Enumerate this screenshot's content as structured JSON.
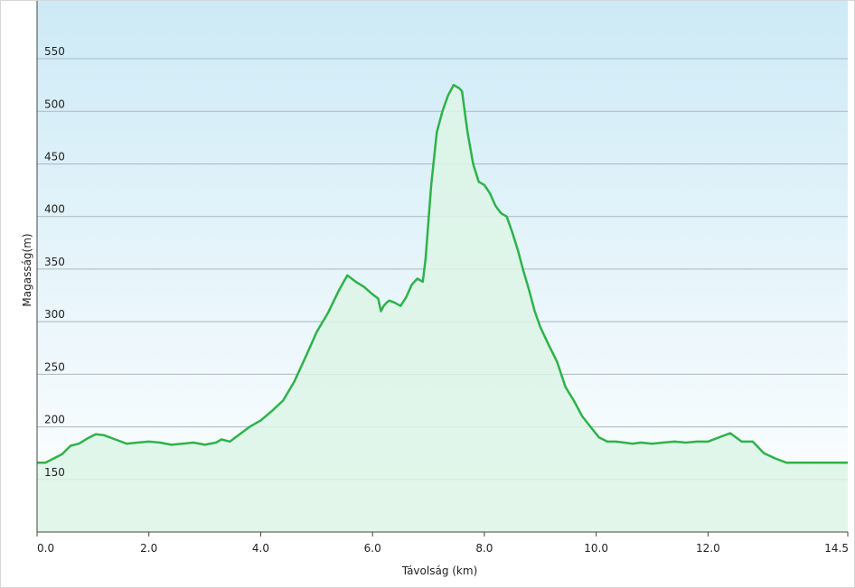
{
  "chart_data": {
    "type": "area",
    "title": "",
    "xlabel": "Távolság  (km)",
    "ylabel": "Magasság(m)",
    "xlim": [
      0,
      14.5
    ],
    "ylim": [
      100,
      605
    ],
    "x_ticks": [
      0,
      2,
      4,
      6,
      8,
      10,
      12,
      14.5
    ],
    "x_tick_labels": [
      "0.0",
      "2.0",
      "4.0",
      "6.0",
      "8.0",
      "10.0",
      "12.0",
      "14.5"
    ],
    "y_ticks": [
      150,
      200,
      250,
      300,
      350,
      400,
      450,
      500,
      550
    ],
    "y_tick_labels": [
      "150",
      "200",
      "250",
      "300",
      "350",
      "400",
      "450",
      "500",
      "550"
    ],
    "grid": "horizontal",
    "colors": {
      "line": "#2db34a",
      "area_fill": "#ddf5e6",
      "background_top": "#cdeaf6",
      "background_bottom": "#ffffff",
      "grid": "#aab8bf"
    },
    "series": [
      {
        "x": [
          0,
          0.15,
          0.3,
          0.45,
          0.6,
          0.75,
          0.9,
          1.05,
          1.2,
          1.4,
          1.6,
          1.8,
          2.0,
          2.2,
          2.4,
          2.6,
          2.8,
          3.0,
          3.2,
          3.3,
          3.45,
          3.6,
          3.8,
          4.0,
          4.2,
          4.4,
          4.6,
          4.8,
          5.0,
          5.2,
          5.4,
          5.55,
          5.7,
          5.85,
          6.0,
          6.1,
          6.15,
          6.2,
          6.25,
          6.3,
          6.4,
          6.5,
          6.6,
          6.7,
          6.8,
          6.9,
          6.95,
          7.05,
          7.15,
          7.25,
          7.35,
          7.45,
          7.55,
          7.6,
          7.7,
          7.8,
          7.9,
          8.0,
          8.1,
          8.2,
          8.3,
          8.4,
          8.5,
          8.6,
          8.7,
          8.8,
          8.9,
          9.0,
          9.15,
          9.3,
          9.45,
          9.6,
          9.75,
          9.9,
          10.05,
          10.2,
          10.35,
          10.5,
          10.65,
          10.8,
          11.0,
          11.2,
          11.4,
          11.6,
          11.8,
          12.0,
          12.2,
          12.4,
          12.6,
          12.8,
          13.0,
          13.2,
          13.4,
          13.6,
          13.8,
          14.0,
          14.2,
          14.35,
          14.5
        ],
        "y": [
          166,
          166,
          170,
          174,
          182,
          184,
          189,
          193,
          192,
          188,
          184,
          185,
          186,
          185,
          183,
          184,
          185,
          183,
          185,
          188,
          186,
          192,
          200,
          206,
          215,
          225,
          243,
          266,
          290,
          308,
          330,
          344,
          338,
          333,
          326,
          322,
          310,
          315,
          318,
          320,
          318,
          315,
          323,
          335,
          341,
          338,
          360,
          430,
          480,
          500,
          515,
          525,
          522,
          519,
          480,
          450,
          433,
          430,
          422,
          410,
          403,
          400,
          385,
          368,
          348,
          330,
          310,
          295,
          278,
          262,
          238,
          225,
          210,
          200,
          190,
          186,
          186,
          185,
          184,
          185,
          184,
          185,
          186,
          185,
          186,
          186,
          190,
          194,
          186,
          186,
          175,
          170,
          166,
          166,
          166,
          166,
          166,
          166,
          166
        ]
      }
    ]
  }
}
